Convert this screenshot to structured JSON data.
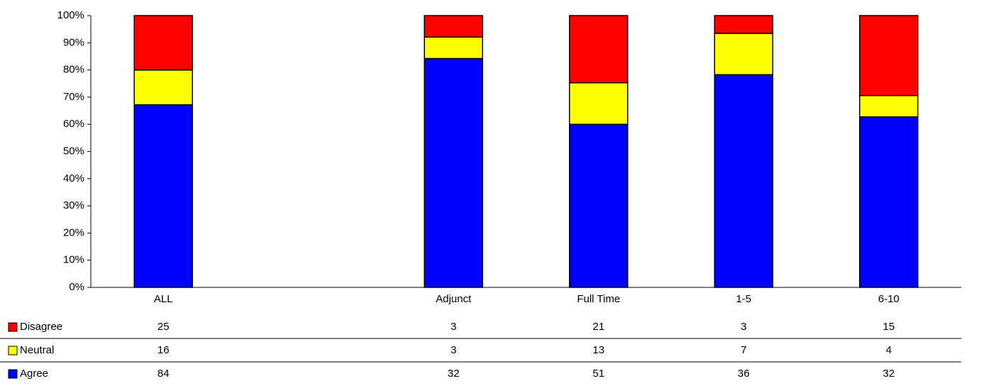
{
  "chart_data": {
    "type": "stacked_percent_bar",
    "categories": [
      "ALL",
      null,
      "Adjunct",
      "Full Time",
      "1-5",
      "6-10"
    ],
    "series": [
      {
        "name": "Disagree",
        "color": "#ff0000",
        "values": [
          25,
          null,
          3,
          21,
          3,
          15
        ]
      },
      {
        "name": "Neutral",
        "color": "#ffff00",
        "values": [
          16,
          null,
          3,
          13,
          7,
          4
        ]
      },
      {
        "name": "Agree",
        "color": "#0000ff",
        "values": [
          84,
          null,
          32,
          51,
          36,
          32
        ]
      }
    ],
    "ylim": [
      0,
      100
    ],
    "yticks": [
      {
        "value": 0,
        "label": "0%"
      },
      {
        "value": 10,
        "label": "10%"
      },
      {
        "value": 20,
        "label": "20%"
      },
      {
        "value": 30,
        "label": "30%"
      },
      {
        "value": 40,
        "label": "40%"
      },
      {
        "value": 50,
        "label": "50%"
      },
      {
        "value": 60,
        "label": "60%"
      },
      {
        "value": 70,
        "label": "70%"
      },
      {
        "value": 80,
        "label": "80%"
      },
      {
        "value": 90,
        "label": "90%"
      },
      {
        "value": 100,
        "label": "100%"
      }
    ],
    "data_table": true
  }
}
